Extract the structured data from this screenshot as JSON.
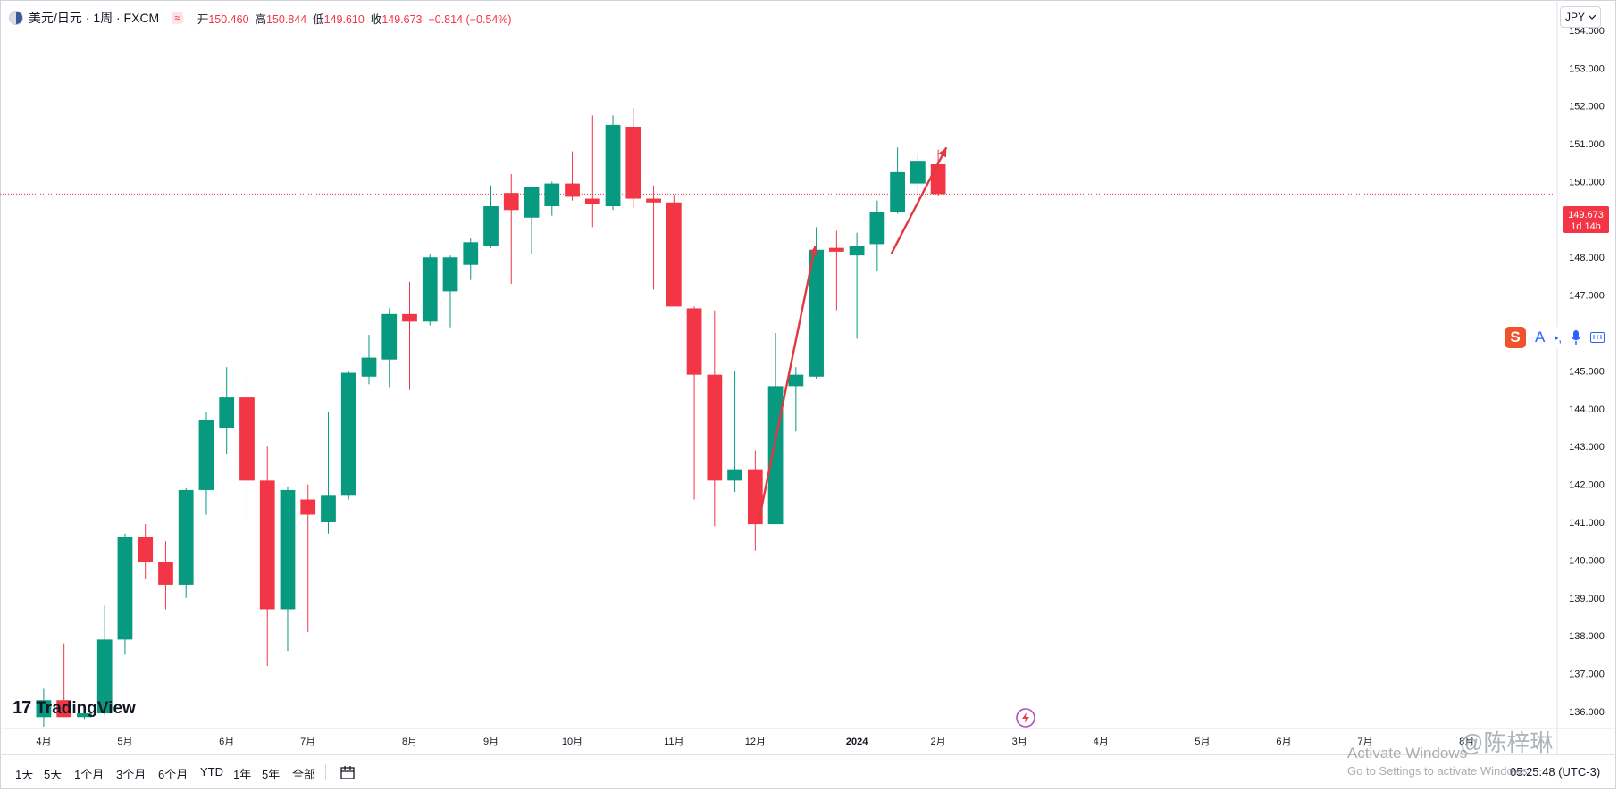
{
  "legend": {
    "symbol": "美元/日元 · 1周 · FXCM",
    "indicator_icon": "≈",
    "open_label": "开",
    "open": "150.460",
    "high_label": "高",
    "high": "150.844",
    "low_label": "低",
    "low": "149.610",
    "close_label": "收",
    "close": "149.673",
    "change": "−0.814 (−0.54%)"
  },
  "currency_button": {
    "label": "JPY",
    "icon": "chevron-down-icon"
  },
  "price_badge": {
    "price": "149.673",
    "countdown": "1d 14h"
  },
  "brand": {
    "logo_mark": "17",
    "name": "TradingView"
  },
  "ime_toolbar": {
    "logo": "S",
    "text": "A",
    "dots": "•,",
    "mic_icon": "mic-icon",
    "keyboard_icon": "keyboard-icon"
  },
  "bottom_bar": {
    "ranges": [
      "1天",
      "5天",
      "1个月",
      "3个月",
      "6个月",
      "YTD",
      "1年",
      "5年",
      "全部"
    ],
    "calendar_icon": "calendar-range-icon",
    "clock": "05:25:48 (UTC-3)"
  },
  "overlays": {
    "weibo_text": "@陈梓琳",
    "activate_title": "Activate Windows",
    "activate_sub": "Go to Settings to activate Windows.",
    "lightning_icon": "lightning-icon"
  },
  "colors": {
    "up": "#089981",
    "down": "#f23645",
    "last_price_line": "#f23645"
  },
  "chart_data": {
    "type": "candlestick",
    "title": "美元/日元 · 1周 · FXCM",
    "y_ticks": [
      "136.000",
      "137.000",
      "138.000",
      "139.000",
      "140.000",
      "141.000",
      "142.000",
      "143.000",
      "144.000",
      "145.000",
      "146.000",
      "147.000",
      "148.000",
      "149.000",
      "150.000",
      "151.000",
      "152.000",
      "153.000",
      "154.000"
    ],
    "x_ticks": [
      {
        "label": "4月",
        "week": 0
      },
      {
        "label": "5月",
        "week": 4
      },
      {
        "label": "6月",
        "week": 9
      },
      {
        "label": "7月",
        "week": 13
      },
      {
        "label": "8月",
        "week": 18
      },
      {
        "label": "9月",
        "week": 22
      },
      {
        "label": "10月",
        "week": 26
      },
      {
        "label": "11月",
        "week": 31
      },
      {
        "label": "12月",
        "week": 35
      },
      {
        "label": "2024",
        "week": 40
      },
      {
        "label": "2月",
        "week": 44
      },
      {
        "label": "3月",
        "week": 48
      },
      {
        "label": "4月",
        "week": 52
      },
      {
        "label": "5月",
        "week": 57
      },
      {
        "label": "6月",
        "week": 61
      },
      {
        "label": "7月",
        "week": 65
      },
      {
        "label": "8月",
        "week": 70
      }
    ],
    "ylim": [
      135.55,
      154.8
    ],
    "xlim": [
      -2.15,
      74.45
    ],
    "last_price": 149.673,
    "candles": [
      {
        "o": 135.85,
        "h": 136.6,
        "l": 135.6,
        "c": 136.3
      },
      {
        "o": 136.3,
        "h": 137.8,
        "l": 135.85,
        "c": 135.85
      },
      {
        "o": 135.85,
        "h": 136.1,
        "l": 135.8,
        "c": 135.95
      },
      {
        "o": 135.95,
        "h": 138.8,
        "l": 135.9,
        "c": 137.9
      },
      {
        "o": 137.9,
        "h": 140.7,
        "l": 137.5,
        "c": 140.6
      },
      {
        "o": 140.6,
        "h": 140.95,
        "l": 139.5,
        "c": 139.95
      },
      {
        "o": 139.95,
        "h": 140.5,
        "l": 138.7,
        "c": 139.35
      },
      {
        "o": 139.35,
        "h": 141.9,
        "l": 139.0,
        "c": 141.85
      },
      {
        "o": 141.85,
        "h": 143.9,
        "l": 141.2,
        "c": 143.7
      },
      {
        "o": 143.5,
        "h": 145.1,
        "l": 142.8,
        "c": 144.3
      },
      {
        "o": 144.3,
        "h": 144.9,
        "l": 141.1,
        "c": 142.1
      },
      {
        "o": 142.1,
        "h": 143.0,
        "l": 137.2,
        "c": 138.7
      },
      {
        "o": 138.7,
        "h": 141.95,
        "l": 137.6,
        "c": 141.85
      },
      {
        "o": 141.6,
        "h": 142.0,
        "l": 138.1,
        "c": 141.2
      },
      {
        "o": 141.0,
        "h": 143.9,
        "l": 140.7,
        "c": 141.7
      },
      {
        "o": 141.7,
        "h": 145.0,
        "l": 141.6,
        "c": 144.95
      },
      {
        "o": 144.85,
        "h": 145.95,
        "l": 144.65,
        "c": 145.35
      },
      {
        "o": 145.3,
        "h": 146.65,
        "l": 144.55,
        "c": 146.5
      },
      {
        "o": 146.5,
        "h": 147.35,
        "l": 144.5,
        "c": 146.3
      },
      {
        "o": 146.3,
        "h": 148.1,
        "l": 146.2,
        "c": 148.0
      },
      {
        "o": 147.1,
        "h": 148.05,
        "l": 146.15,
        "c": 148.0
      },
      {
        "o": 147.8,
        "h": 148.5,
        "l": 147.4,
        "c": 148.4
      },
      {
        "o": 148.3,
        "h": 149.9,
        "l": 148.25,
        "c": 149.35
      },
      {
        "o": 149.7,
        "h": 150.2,
        "l": 147.3,
        "c": 149.25
      },
      {
        "o": 149.05,
        "h": 149.8,
        "l": 148.1,
        "c": 149.85
      },
      {
        "o": 149.35,
        "h": 150.0,
        "l": 149.1,
        "c": 149.95
      },
      {
        "o": 149.95,
        "h": 150.8,
        "l": 149.5,
        "c": 149.6
      },
      {
        "o": 149.55,
        "h": 151.75,
        "l": 148.8,
        "c": 149.4
      },
      {
        "o": 149.35,
        "h": 151.75,
        "l": 149.25,
        "c": 151.5
      },
      {
        "o": 151.45,
        "h": 151.95,
        "l": 149.3,
        "c": 149.55
      },
      {
        "o": 149.55,
        "h": 149.9,
        "l": 147.15,
        "c": 149.45
      },
      {
        "o": 149.45,
        "h": 149.65,
        "l": 146.7,
        "c": 146.7
      },
      {
        "o": 146.65,
        "h": 146.7,
        "l": 141.6,
        "c": 144.9
      },
      {
        "o": 144.9,
        "h": 146.6,
        "l": 140.9,
        "c": 142.1
      },
      {
        "o": 142.1,
        "h": 145.0,
        "l": 141.8,
        "c": 142.4
      },
      {
        "o": 142.4,
        "h": 142.9,
        "l": 140.25,
        "c": 140.95
      },
      {
        "o": 140.95,
        "h": 146.0,
        "l": 140.95,
        "c": 144.6
      },
      {
        "o": 144.6,
        "h": 145.1,
        "l": 143.4,
        "c": 144.9
      },
      {
        "o": 144.85,
        "h": 148.8,
        "l": 144.8,
        "c": 148.2
      },
      {
        "o": 148.25,
        "h": 148.7,
        "l": 146.6,
        "c": 148.15
      },
      {
        "o": 148.05,
        "h": 148.65,
        "l": 145.85,
        "c": 148.3
      },
      {
        "o": 148.35,
        "h": 149.5,
        "l": 147.65,
        "c": 149.2
      },
      {
        "o": 149.2,
        "h": 150.9,
        "l": 149.15,
        "c": 150.25
      },
      {
        "o": 149.95,
        "h": 150.75,
        "l": 149.65,
        "c": 150.55
      },
      {
        "o": 150.46,
        "h": 150.844,
        "l": 149.61,
        "c": 149.673
      }
    ],
    "annotations": [
      {
        "type": "arrow",
        "color": "#e0393f",
        "from": {
          "week": 35.2,
          "price": 141.1
        },
        "to": {
          "week": 37.95,
          "price": 148.3
        }
      },
      {
        "type": "arrow",
        "color": "#e0393f",
        "from": {
          "week": 41.7,
          "price": 148.1
        },
        "to": {
          "week": 44.4,
          "price": 150.9
        }
      }
    ]
  }
}
